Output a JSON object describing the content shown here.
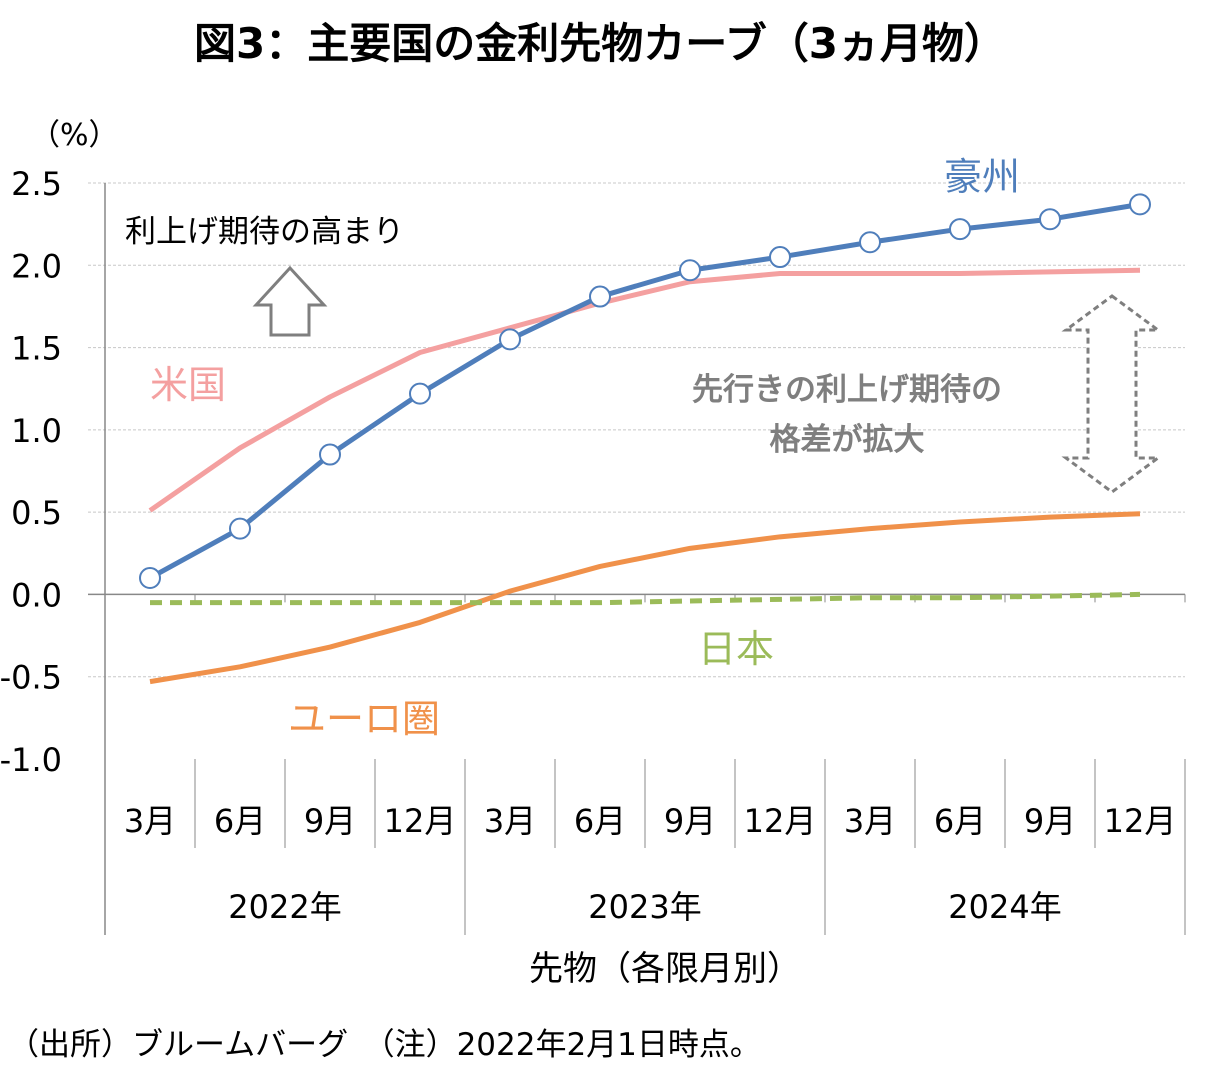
{
  "chart_data": {
    "type": "line",
    "title": "図3：主要国の金利先物カーブ（3ヵ月物）",
    "ylabel": "（%）",
    "xlabel": "先物（各限月別）",
    "ylim": [
      -1.0,
      2.5
    ],
    "yticks": [
      "2.5",
      "2.0",
      "1.5",
      "1.0",
      "0.5",
      "0.0",
      "-0.5",
      "-1.0"
    ],
    "ytick_values": [
      2.5,
      2.0,
      1.5,
      1.0,
      0.5,
      0.0,
      -0.5,
      -1.0
    ],
    "categories": [
      "3月",
      "6月",
      "9月",
      "12月",
      "3月",
      "6月",
      "9月",
      "12月",
      "3月",
      "6月",
      "9月",
      "12月"
    ],
    "year_groups": [
      "2022年",
      "2023年",
      "2024年"
    ],
    "grid": true,
    "series": [
      {
        "name": "豪州",
        "color": "#4F7EBB",
        "markers": true,
        "dashed": false,
        "values": [
          0.1,
          0.4,
          0.85,
          1.22,
          1.55,
          1.81,
          1.97,
          2.05,
          2.14,
          2.22,
          2.28,
          2.37
        ]
      },
      {
        "name": "米国",
        "color": "#F4A0A0",
        "markers": false,
        "dashed": false,
        "values": [
          0.51,
          0.89,
          1.2,
          1.47,
          1.62,
          1.77,
          1.9,
          1.95,
          1.95,
          1.95,
          1.96,
          1.97
        ]
      },
      {
        "name": "ユーロ圏",
        "color": "#F0914A",
        "markers": false,
        "dashed": false,
        "values": [
          -0.53,
          -0.44,
          -0.32,
          -0.17,
          0.02,
          0.17,
          0.28,
          0.35,
          0.4,
          0.44,
          0.47,
          0.49
        ]
      },
      {
        "name": "日本",
        "color": "#9BBB59",
        "markers": false,
        "dashed": true,
        "values": [
          -0.05,
          -0.05,
          -0.05,
          -0.05,
          -0.05,
          -0.05,
          -0.04,
          -0.03,
          -0.02,
          -0.02,
          -0.01,
          0.0
        ]
      }
    ],
    "annotations": {
      "rise": "利上げ期待の高まり",
      "gap_line1": "先行きの利上げ期待の",
      "gap_line2": "格差が拡大"
    }
  },
  "footer": "（出所）ブルームバーグ　（注）2022年2月1日時点。"
}
